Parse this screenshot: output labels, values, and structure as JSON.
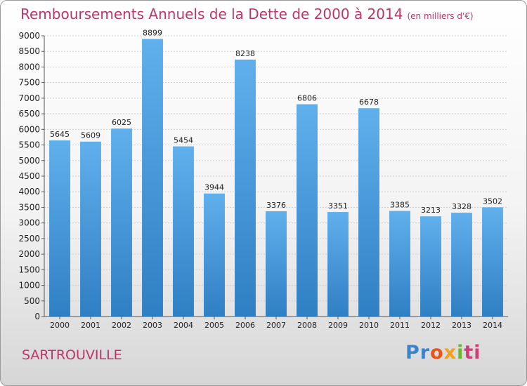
{
  "header": {
    "title": "Remboursements Annuels de la Dette de 2000 à 2014",
    "unit": "(en milliers d'€)"
  },
  "footer": {
    "city": "SARTROUVILLE",
    "logo": [
      "Pr",
      "o",
      "x",
      "i",
      "ti"
    ]
  },
  "colors": {
    "bar": "#3a8fd6",
    "bar_light": "#5fb0ec",
    "title": "#c0336a"
  },
  "chart_data": {
    "type": "bar",
    "title": "Remboursements Annuels de la Dette de 2000 à 2014",
    "xlabel": "",
    "ylabel": "",
    "ylim": [
      0,
      9000
    ],
    "yticks": [
      0,
      500,
      1000,
      1500,
      2000,
      2500,
      3000,
      3500,
      4000,
      4500,
      5000,
      5500,
      6000,
      6500,
      7000,
      7500,
      8000,
      8500,
      9000
    ],
    "grid": true,
    "categories": [
      "2000",
      "2001",
      "2002",
      "2003",
      "2004",
      "2005",
      "2006",
      "2007",
      "2008",
      "2009",
      "2010",
      "2011",
      "2012",
      "2013",
      "2014"
    ],
    "values": [
      5645,
      5609,
      6025,
      8899,
      5454,
      3944,
      8238,
      3376,
      6806,
      3351,
      6678,
      3385,
      3213,
      3328,
      3502
    ]
  }
}
